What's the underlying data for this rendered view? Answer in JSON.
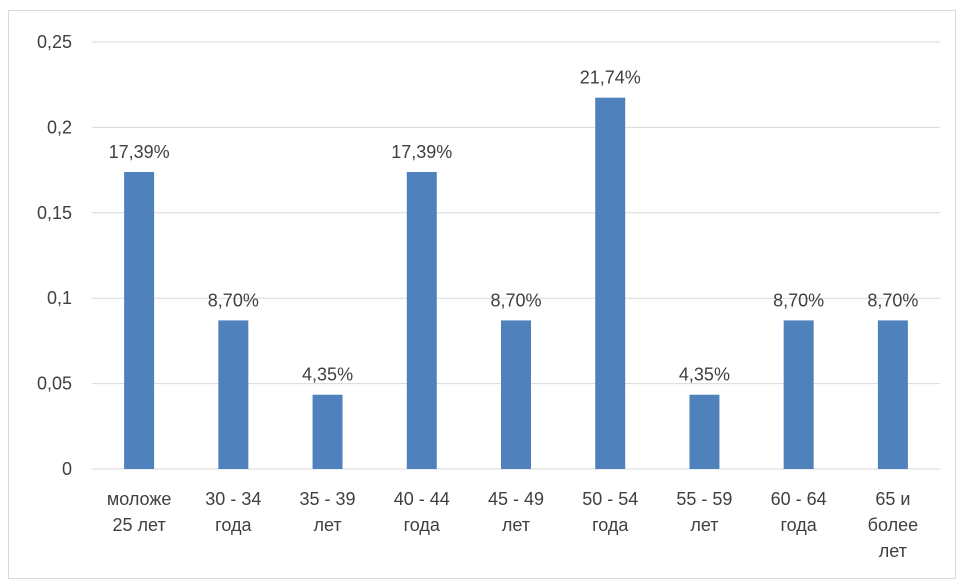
{
  "chart_data": {
    "type": "bar",
    "categories": [
      [
        "моложе",
        "25 лет"
      ],
      [
        "30 - 34",
        "года"
      ],
      [
        "35 - 39",
        "лет"
      ],
      [
        "40 - 44",
        "года"
      ],
      [
        "45 - 49",
        "лет"
      ],
      [
        "50 - 54",
        "года"
      ],
      [
        "55 - 59",
        "лет"
      ],
      [
        "60 - 64",
        "года"
      ],
      [
        "65 и",
        "более",
        "лет"
      ]
    ],
    "values": [
      0.1739,
      0.087,
      0.0435,
      0.1739,
      0.087,
      0.2174,
      0.0435,
      0.087,
      0.087
    ],
    "data_labels": [
      "17,39%",
      "8,70%",
      "4,35%",
      "17,39%",
      "8,70%",
      "21,74%",
      "4,35%",
      "8,70%",
      "8,70%"
    ],
    "y_ticks": [
      "0",
      "0,05",
      "0,1",
      "0,15",
      "0,2",
      "0,25"
    ],
    "ylim": [
      0,
      0.25
    ],
    "title": "",
    "xlabel": "",
    "ylabel": "",
    "grid": true,
    "legend": "none",
    "colors": {
      "bar": "#4f81bd",
      "grid": "#d9d9d9",
      "text": "#404040",
      "frame": "#d9d9d9"
    }
  }
}
